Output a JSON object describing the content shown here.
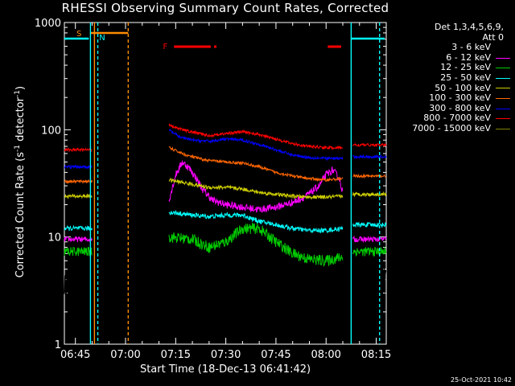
{
  "chart_data": {
    "type": "line",
    "title": "RHESSI Observing Summary Count Rates, Corrected",
    "xlabel": "Start Time (18-Dec-13 06:41:42)",
    "ylabel": "Corrected Count Rate (s",
    "ylabel_sup": "-1",
    "ylabel_tail": " detector",
    "ylabel_sup2": "-1",
    "ylabel_end": ")",
    "yscale": "log",
    "ylim": [
      1,
      1000
    ],
    "xlim_minutes_after_0640": [
      1.7,
      98
    ],
    "xticks": [
      {
        "label": "06:45",
        "min": 5
      },
      {
        "label": "07:00",
        "min": 20
      },
      {
        "label": "07:15",
        "min": 35
      },
      {
        "label": "07:30",
        "min": 50
      },
      {
        "label": "07:45",
        "min": 65
      },
      {
        "label": "08:00",
        "min": 80
      },
      {
        "label": "08:15",
        "min": 95
      }
    ],
    "yticks": [
      {
        "label": "1",
        "v": 1
      },
      {
        "label": "10",
        "v": 10
      },
      {
        "label": "100",
        "v": 100
      },
      {
        "label": "1000",
        "v": 1000
      }
    ],
    "legend_header": [
      "Det 1,3,4,5,6,9,",
      "Att 0"
    ],
    "series": [
      {
        "name": "3 - 6 keV",
        "color": "#000000",
        "seg1": 3.6,
        "noise1": 0.25,
        "seg2": [
          [
            33,
            20
          ],
          [
            35,
            40
          ],
          [
            37,
            55
          ],
          [
            39,
            50
          ],
          [
            41,
            40
          ],
          [
            43,
            30
          ],
          [
            46,
            22
          ],
          [
            50,
            20
          ],
          [
            55,
            18
          ],
          [
            60,
            18
          ],
          [
            65,
            19
          ],
          [
            70,
            22
          ],
          [
            74,
            26
          ],
          [
            78,
            30
          ],
          [
            80,
            40
          ],
          [
            82,
            45
          ],
          [
            84,
            38
          ],
          [
            85,
            28
          ]
        ],
        "noise2": 0.25,
        "seg3": 3.8,
        "noise3": 0.3
      },
      {
        "name": "6 - 12 keV",
        "color": "#ff00ff",
        "seg1": 9.5,
        "noise1": 0.06,
        "seg2": [
          [
            33,
            22
          ],
          [
            35,
            38
          ],
          [
            37,
            50
          ],
          [
            39,
            44
          ],
          [
            41,
            36
          ],
          [
            43,
            28
          ],
          [
            46,
            22
          ],
          [
            50,
            20
          ],
          [
            55,
            19
          ],
          [
            60,
            18
          ],
          [
            65,
            19
          ],
          [
            70,
            21
          ],
          [
            74,
            24
          ],
          [
            78,
            30
          ],
          [
            80,
            38
          ],
          [
            82,
            42
          ],
          [
            84,
            35
          ],
          [
            85,
            26
          ]
        ],
        "noise2": 0.08,
        "seg3": 9.5,
        "noise3": 0.06
      },
      {
        "name": "12 - 25 keV",
        "color": "#00cc00",
        "seg1": 7.3,
        "noise1": 0.1,
        "seg2": [
          [
            33,
            10
          ],
          [
            40,
            9.5
          ],
          [
            45,
            8
          ],
          [
            50,
            9
          ],
          [
            55,
            12
          ],
          [
            60,
            12
          ],
          [
            65,
            9
          ],
          [
            70,
            7
          ],
          [
            75,
            6.2
          ],
          [
            80,
            6
          ],
          [
            85,
            6.5
          ]
        ],
        "noise2": 0.12,
        "seg3": 7.3,
        "noise3": 0.1
      },
      {
        "name": "25 - 50 keV",
        "color": "#00ffff",
        "seg1": 12,
        "noise1": 0.05,
        "seg2": [
          [
            33,
            17
          ],
          [
            40,
            16
          ],
          [
            45,
            15.5
          ],
          [
            50,
            16
          ],
          [
            55,
            16
          ],
          [
            60,
            14
          ],
          [
            65,
            13
          ],
          [
            70,
            12
          ],
          [
            75,
            11.5
          ],
          [
            80,
            11.5
          ],
          [
            85,
            12
          ]
        ],
        "noise2": 0.05,
        "seg3": 13,
        "noise3": 0.05
      },
      {
        "name": "50 - 100 keV",
        "color": "#cccc00",
        "seg1": 24,
        "noise1": 0.04,
        "seg2": [
          [
            33,
            34
          ],
          [
            40,
            31
          ],
          [
            45,
            29
          ],
          [
            50,
            29
          ],
          [
            55,
            28
          ],
          [
            60,
            26
          ],
          [
            65,
            25
          ],
          [
            70,
            24
          ],
          [
            75,
            23.5
          ],
          [
            80,
            23.5
          ],
          [
            85,
            24
          ]
        ],
        "noise2": 0.04,
        "seg3": 25,
        "noise3": 0.04
      },
      {
        "name": "100 - 300 keV",
        "color": "#ff6600",
        "seg1": 33,
        "noise1": 0.03,
        "seg2": [
          [
            33,
            68
          ],
          [
            38,
            58
          ],
          [
            44,
            52
          ],
          [
            50,
            50
          ],
          [
            55,
            49
          ],
          [
            60,
            45
          ],
          [
            65,
            40
          ],
          [
            70,
            37
          ],
          [
            75,
            35
          ],
          [
            80,
            34
          ],
          [
            85,
            35
          ]
        ],
        "noise2": 0.03,
        "seg3": 37,
        "noise3": 0.03
      },
      {
        "name": "300 - 800 keV",
        "color": "#0000ff",
        "seg1": 45,
        "noise1": 0.03,
        "seg2": [
          [
            33,
            100
          ],
          [
            36,
            86
          ],
          [
            40,
            80
          ],
          [
            45,
            78
          ],
          [
            50,
            82
          ],
          [
            55,
            80
          ],
          [
            60,
            73
          ],
          [
            65,
            65
          ],
          [
            70,
            58
          ],
          [
            75,
            55
          ],
          [
            80,
            54
          ],
          [
            85,
            54
          ]
        ],
        "noise2": 0.03,
        "seg3": 56,
        "noise3": 0.03
      },
      {
        "name": "800 - 7000 keV",
        "color": "#ff0000",
        "seg1": 65,
        "noise1": 0.03,
        "seg2": [
          [
            33,
            112
          ],
          [
            36,
            102
          ],
          [
            40,
            95
          ],
          [
            45,
            88
          ],
          [
            50,
            92
          ],
          [
            55,
            96
          ],
          [
            60,
            90
          ],
          [
            65,
            82
          ],
          [
            70,
            74
          ],
          [
            75,
            70
          ],
          [
            80,
            68
          ],
          [
            85,
            68
          ]
        ],
        "noise2": 0.03,
        "seg3": 72,
        "noise3": 0.03
      },
      {
        "name": "7000 - 15000 keV",
        "color": "#808000"
      }
    ],
    "markers": {
      "S": {
        "label": "S",
        "color": "#ff8c00"
      },
      "N": {
        "label": "N",
        "color": "#00ffff"
      },
      "F": {
        "label": "F",
        "color": "#ff0000"
      }
    }
  },
  "footer": {
    "timestamp": "25-Oct-2021 10:42"
  }
}
